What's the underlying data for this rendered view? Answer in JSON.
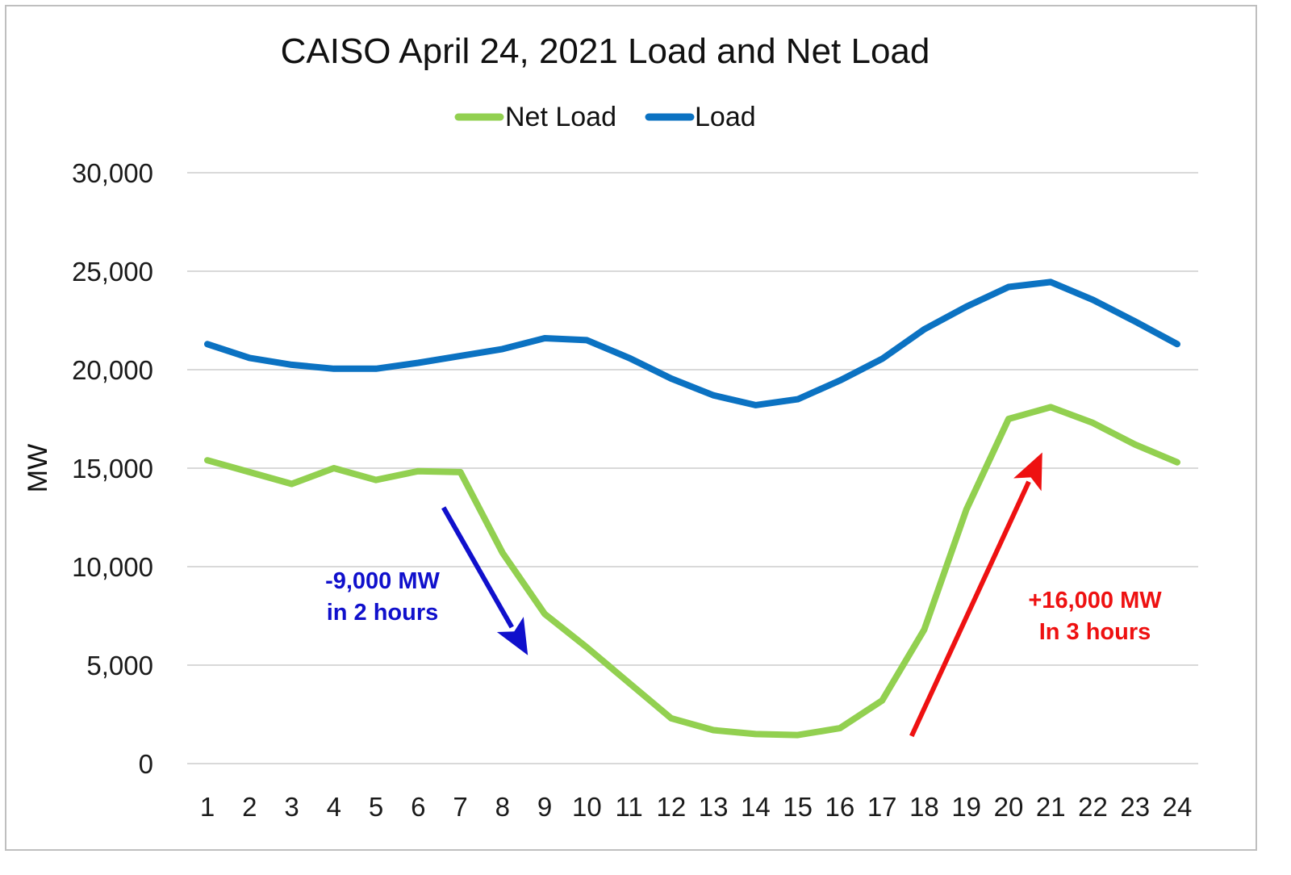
{
  "chart_data": {
    "type": "line",
    "title": "CAISO April 24, 2021 Load and Net Load",
    "xlabel": "",
    "ylabel": "MW",
    "x": [
      1,
      2,
      3,
      4,
      5,
      6,
      7,
      8,
      9,
      10,
      11,
      12,
      13,
      14,
      15,
      16,
      17,
      18,
      19,
      20,
      21,
      22,
      23,
      24
    ],
    "x_tick_labels": [
      "1",
      "2",
      "3",
      "4",
      "5",
      "6",
      "7",
      "8",
      "9",
      "10",
      "11",
      "12",
      "13",
      "14",
      "15",
      "16",
      "17",
      "18",
      "19",
      "20",
      "21",
      "22",
      "23",
      "24"
    ],
    "ylim": [
      0,
      30000
    ],
    "y_ticks": [
      0,
      5000,
      10000,
      15000,
      20000,
      25000,
      30000
    ],
    "y_tick_labels": [
      "0",
      "5,000",
      "10,000",
      "15,000",
      "20,000",
      "25,000",
      "30,000"
    ],
    "grid": "horizontal",
    "legend": {
      "position": "top",
      "entries": [
        "Net Load",
        "Load"
      ]
    },
    "series": [
      {
        "name": "Net Load",
        "color": "#92d050",
        "values": [
          15400,
          14800,
          14200,
          15000,
          14400,
          14850,
          14800,
          10700,
          7600,
          5900,
          4100,
          2300,
          1700,
          1500,
          1450,
          1800,
          3200,
          6800,
          12900,
          17500,
          18100,
          17300,
          16200,
          15300
        ]
      },
      {
        "name": "Load",
        "color": "#0b72c2",
        "values": [
          21300,
          20600,
          20250,
          20050,
          20050,
          20350,
          20700,
          21050,
          21600,
          21500,
          20600,
          19550,
          18700,
          18200,
          18500,
          19450,
          20550,
          22050,
          23200,
          24200,
          24450,
          23550,
          22450,
          21300
        ]
      }
    ],
    "annotations": [
      {
        "line1": "-9,000 MW",
        "line2": "in 2 hours",
        "color": "#1010cc",
        "arrow_from": [
          6.6,
          13000
        ],
        "arrow_to": [
          8.6,
          5500
        ]
      },
      {
        "line1": "+16,000 MW",
        "line2": "In 3 hours",
        "color": "#ee1111",
        "arrow_from": [
          17.7,
          1400
        ],
        "arrow_to": [
          20.8,
          15800
        ]
      }
    ]
  }
}
